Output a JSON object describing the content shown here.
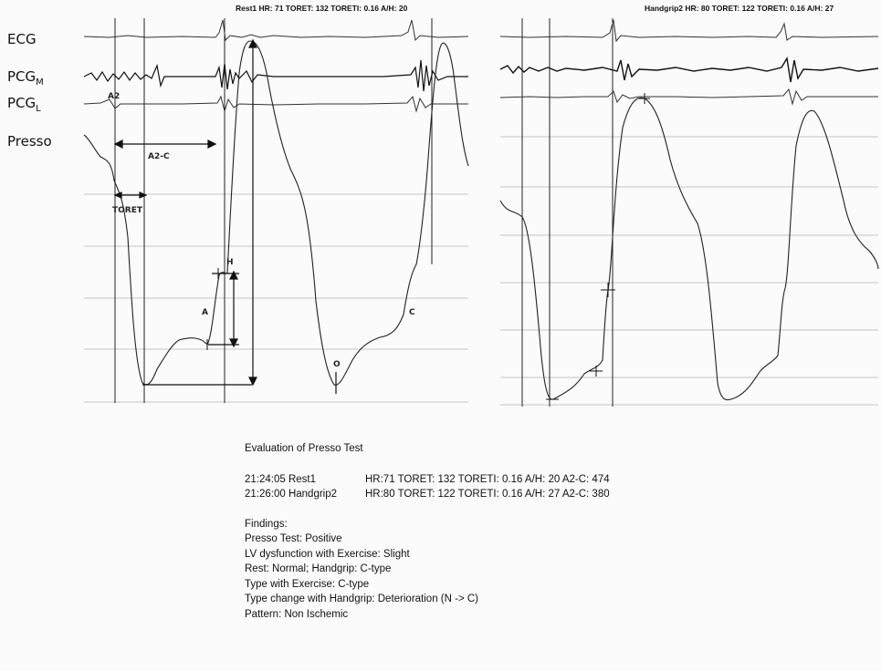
{
  "trace_labels": {
    "ecg": "ECG",
    "pcg_m": "PCG",
    "pcg_m_sub": "M",
    "pcg_l": "PCG",
    "pcg_l_sub": "L",
    "presso": "Presso"
  },
  "panels": [
    {
      "title": "Rest1 HR: 71  TORET: 132 TORETI: 0.16 A/H: 20"
    },
    {
      "title": "Handgrip2 HR: 80  TORET: 122 TORETI: 0.16 A/H: 27"
    }
  ],
  "annotations": {
    "a2": "A2",
    "a2c": "A2-C",
    "toret": "TORET",
    "h": "H",
    "a": "A",
    "o": "O",
    "c": "C"
  },
  "report": {
    "heading": "Evaluation of Presso Test",
    "rows": [
      {
        "time": "21:24:05  Rest1",
        "values": "HR:71  TORET: 132  TORETI: 0.16  A/H: 20  A2-C: 474"
      },
      {
        "time": "21:26:00  Handgrip2",
        "values": "HR:80  TORET: 122  TORETI: 0.16  A/H: 27  A2-C: 380"
      }
    ],
    "findings": [
      "Findings:",
      "Presso Test: Positive",
      "LV dysfunction with Exercise: Slight",
      "Rest: Normal; Handgrip: C-type",
      "Type with Exercise: C-type",
      "Type change with Handgrip: Deterioration (N -> C)",
      "Pattern: Non Ischemic"
    ]
  }
}
